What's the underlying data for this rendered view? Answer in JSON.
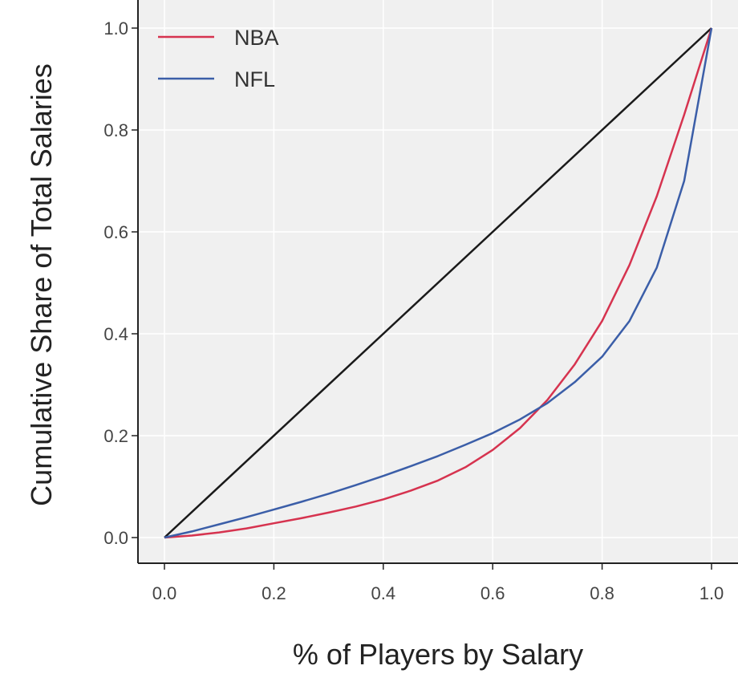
{
  "chart_data": {
    "type": "line",
    "title": "",
    "xlabel": "% of Players by Salary",
    "ylabel": "Cumulative Share of Total Salaries",
    "xlim": [
      -0.05,
      1.05
    ],
    "ylim": [
      -0.05,
      1.05
    ],
    "x_ticks": [
      0.0,
      0.2,
      0.4,
      0.6,
      0.8,
      1.0
    ],
    "x_tick_labels": [
      "0.0",
      "0.2",
      "0.4",
      "0.6",
      "0.8",
      "1.0"
    ],
    "y_ticks": [
      0.0,
      0.2,
      0.4,
      0.6,
      0.8,
      1.0
    ],
    "y_tick_labels": [
      "0.0",
      "0.2",
      "0.4",
      "0.6",
      "0.8",
      "1.0"
    ],
    "grid": true,
    "legend_position": "top-left",
    "background_color": "#f0f0f0",
    "grid_color": "#ffffff",
    "equality_line": {
      "color": "#1a1a1a",
      "points": [
        [
          0,
          0
        ],
        [
          1,
          1
        ]
      ]
    },
    "series": [
      {
        "name": "NBA",
        "color": "#d6334f",
        "points": [
          [
            0.0,
            0.0
          ],
          [
            0.05,
            0.004
          ],
          [
            0.1,
            0.01
          ],
          [
            0.15,
            0.018
          ],
          [
            0.2,
            0.028
          ],
          [
            0.25,
            0.038
          ],
          [
            0.3,
            0.049
          ],
          [
            0.35,
            0.061
          ],
          [
            0.4,
            0.075
          ],
          [
            0.45,
            0.092
          ],
          [
            0.5,
            0.112
          ],
          [
            0.55,
            0.138
          ],
          [
            0.6,
            0.172
          ],
          [
            0.65,
            0.215
          ],
          [
            0.7,
            0.27
          ],
          [
            0.75,
            0.34
          ],
          [
            0.8,
            0.425
          ],
          [
            0.85,
            0.535
          ],
          [
            0.9,
            0.67
          ],
          [
            0.95,
            0.83
          ],
          [
            1.0,
            1.0
          ]
        ]
      },
      {
        "name": "NFL",
        "color": "#3b5ea8",
        "points": [
          [
            0.0,
            0.0
          ],
          [
            0.05,
            0.012
          ],
          [
            0.1,
            0.026
          ],
          [
            0.15,
            0.04
          ],
          [
            0.2,
            0.055
          ],
          [
            0.25,
            0.07
          ],
          [
            0.3,
            0.086
          ],
          [
            0.35,
            0.103
          ],
          [
            0.4,
            0.121
          ],
          [
            0.45,
            0.14
          ],
          [
            0.5,
            0.16
          ],
          [
            0.55,
            0.182
          ],
          [
            0.6,
            0.205
          ],
          [
            0.65,
            0.232
          ],
          [
            0.7,
            0.264
          ],
          [
            0.75,
            0.305
          ],
          [
            0.8,
            0.355
          ],
          [
            0.85,
            0.425
          ],
          [
            0.9,
            0.53
          ],
          [
            0.95,
            0.7
          ],
          [
            1.0,
            1.0
          ]
        ]
      }
    ]
  }
}
